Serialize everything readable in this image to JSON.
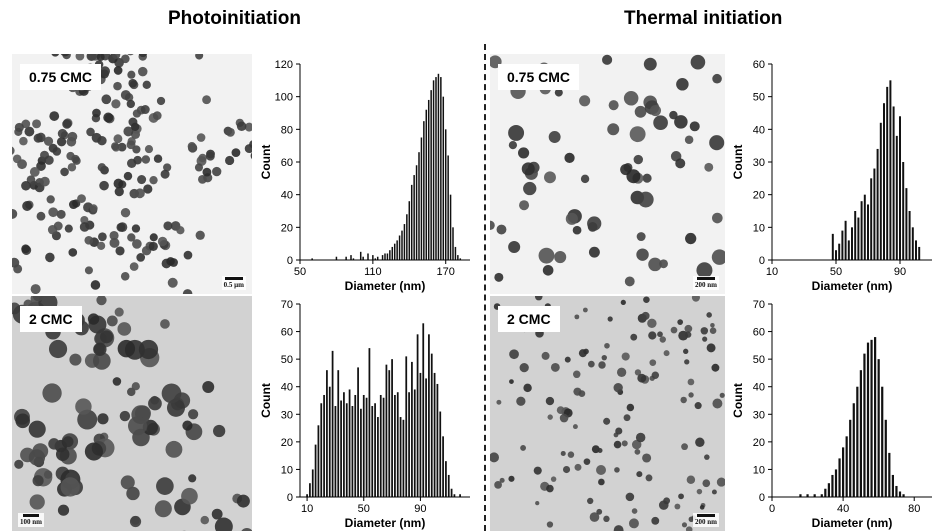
{
  "headings": {
    "left": "Photoinitiation",
    "right": "Thermal initiation"
  },
  "panels": {
    "photo_075": {
      "label": "0.75 CMC",
      "scale_bar": "0.5 µm"
    },
    "photo_2": {
      "label": "2 CMC",
      "scale_bar": "100 nm"
    },
    "thermal_075": {
      "label": "0.75 CMC",
      "scale_bar": "200 nm"
    },
    "thermal_2": {
      "label": "2 CMC",
      "scale_bar": "200 nm"
    }
  },
  "colors": {
    "bars": "#111111",
    "particle": "#3a3a3a",
    "bg_light": "#f2f2f2",
    "bg_grey": "#d2d2d2"
  },
  "chart_data": [
    {
      "type": "bar",
      "title": "",
      "xlabel": "Diameter (nm)",
      "ylabel": "Count",
      "xlim": [
        50,
        190
      ],
      "xticks": [
        50,
        110,
        170
      ],
      "ylim": [
        0,
        120
      ],
      "yticks": [
        0,
        20,
        40,
        60,
        80,
        100,
        120
      ],
      "x": [
        60,
        62,
        64,
        66,
        68,
        70,
        72,
        74,
        76,
        78,
        80,
        82,
        84,
        86,
        88,
        90,
        92,
        94,
        96,
        98,
        100,
        102,
        104,
        106,
        108,
        110,
        112,
        114,
        116,
        118,
        120,
        122,
        124,
        126,
        128,
        130,
        132,
        134,
        136,
        138,
        140,
        142,
        144,
        146,
        148,
        150,
        152,
        154,
        156,
        158,
        160,
        162,
        164,
        166,
        168,
        170,
        172,
        174,
        176,
        178,
        180,
        182
      ],
      "values": [
        1,
        0,
        0,
        0,
        0,
        0,
        0,
        0,
        0,
        0,
        2,
        0,
        0,
        0,
        2,
        0,
        3,
        1,
        0,
        0,
        5,
        2,
        0,
        4,
        0,
        3,
        1,
        2,
        0,
        3,
        4,
        4,
        6,
        8,
        10,
        12,
        15,
        18,
        22,
        28,
        36,
        46,
        52,
        58,
        66,
        75,
        85,
        92,
        98,
        104,
        110,
        112,
        114,
        112,
        100,
        80,
        64,
        40,
        20,
        8,
        3,
        1
      ]
    },
    {
      "type": "bar",
      "title": "",
      "xlabel": "Diameter (nm)",
      "ylabel": "Count",
      "xlim": [
        5,
        125
      ],
      "xticks": [
        10,
        50,
        90
      ],
      "ylim": [
        0,
        70
      ],
      "yticks": [
        0,
        10,
        20,
        30,
        40,
        50,
        60,
        70
      ],
      "x": [
        10,
        12,
        14,
        16,
        18,
        20,
        22,
        24,
        26,
        28,
        30,
        32,
        34,
        36,
        38,
        40,
        42,
        44,
        46,
        48,
        50,
        52,
        54,
        56,
        58,
        60,
        62,
        64,
        66,
        68,
        70,
        72,
        74,
        76,
        78,
        80,
        82,
        84,
        86,
        88,
        90,
        92,
        94,
        96,
        98,
        100,
        102,
        104,
        106,
        108,
        110,
        112,
        114,
        116,
        118
      ],
      "values": [
        1,
        5,
        10,
        19,
        26,
        34,
        37,
        46,
        40,
        53,
        33,
        46,
        35,
        38,
        34,
        39,
        33,
        37,
        47,
        32,
        37,
        36,
        54,
        33,
        34,
        29,
        37,
        36,
        48,
        46,
        50,
        37,
        38,
        29,
        28,
        51,
        38,
        49,
        39,
        59,
        45,
        63,
        43,
        59,
        52,
        45,
        41,
        31,
        22,
        13,
        8,
        3,
        1,
        0,
        1
      ]
    },
    {
      "type": "bar",
      "title": "",
      "xlabel": "Diameter (nm)",
      "ylabel": "Count",
      "xlim": [
        10,
        110
      ],
      "xticks": [
        10,
        50,
        90
      ],
      "ylim": [
        0,
        60
      ],
      "yticks": [
        0,
        10,
        20,
        30,
        40,
        50,
        60
      ],
      "x": [
        48,
        50,
        52,
        54,
        56,
        58,
        60,
        62,
        64,
        66,
        68,
        70,
        72,
        74,
        76,
        78,
        80,
        82,
        84,
        86,
        88,
        90,
        92,
        94,
        96,
        98,
        100,
        102
      ],
      "values": [
        8,
        3,
        5,
        9,
        12,
        6,
        10,
        15,
        13,
        18,
        20,
        17,
        25,
        28,
        34,
        42,
        48,
        53,
        55,
        47,
        38,
        44,
        30,
        22,
        15,
        10,
        6,
        4
      ]
    },
    {
      "type": "bar",
      "title": "",
      "xlabel": "Diameter (nm)",
      "ylabel": "Count",
      "xlim": [
        0,
        90
      ],
      "xticks": [
        0,
        40,
        80
      ],
      "ylim": [
        0,
        70
      ],
      "yticks": [
        0,
        10,
        20,
        30,
        40,
        50,
        60,
        70
      ],
      "x": [
        16,
        18,
        20,
        22,
        24,
        26,
        28,
        30,
        32,
        34,
        36,
        38,
        40,
        42,
        44,
        46,
        48,
        50,
        52,
        54,
        56,
        58,
        60,
        62,
        64,
        66,
        68,
        70,
        72,
        74
      ],
      "values": [
        1,
        0,
        1,
        0,
        1,
        0,
        1,
        3,
        5,
        8,
        10,
        14,
        18,
        22,
        28,
        34,
        40,
        46,
        52,
        56,
        57,
        58,
        50,
        40,
        28,
        16,
        8,
        4,
        2,
        1
      ]
    }
  ]
}
